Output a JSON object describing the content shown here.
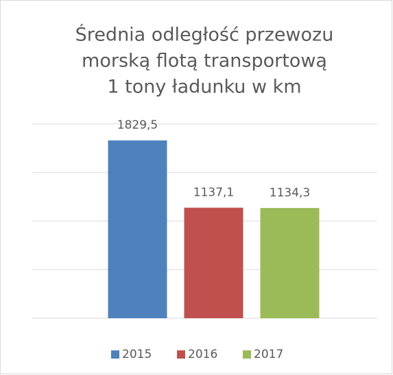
{
  "chart_data": {
    "type": "bar",
    "title": [
      "Średnia odległość przewozu",
      "morską flotą transportową",
      "1 tony ładunku w km"
    ],
    "categories": [
      null
    ],
    "series": [
      {
        "name": "2015",
        "color": "#4f81bd",
        "values": [
          1829.5
        ],
        "value_labels": [
          "1829,5"
        ]
      },
      {
        "name": "2016",
        "color": "#c0504d",
        "values": [
          1137.1
        ],
        "value_labels": [
          "1137,1"
        ]
      },
      {
        "name": "2017",
        "color": "#9bbb59",
        "values": [
          1134.3
        ],
        "value_labels": [
          "1134,3"
        ]
      }
    ],
    "ylim": [
      0,
      2000
    ],
    "yticks": [
      0,
      500,
      1000,
      1500,
      2000
    ],
    "grid": true,
    "legend": "bottom"
  }
}
